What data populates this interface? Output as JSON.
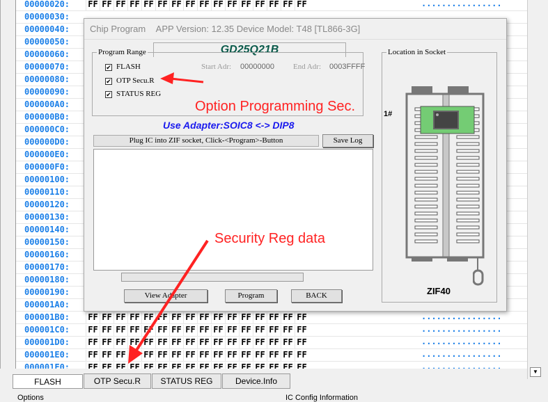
{
  "hex_view": {
    "addresses": [
      "00000020:",
      "00000030:",
      "00000040:",
      "00000050:",
      "00000060:",
      "00000070:",
      "00000080:",
      "00000090:",
      "000000A0:",
      "000000B0:",
      "000000C0:",
      "000000D0:",
      "000000E0:",
      "000000F0:",
      "00000100:",
      "00000110:",
      "00000120:",
      "00000130:",
      "00000140:",
      "00000150:",
      "00000160:",
      "00000170:",
      "00000180:",
      "00000190:",
      "000001A0:",
      "000001B0:",
      "000001C0:",
      "000001D0:",
      "000001E0:",
      "000001F0:"
    ],
    "byte_value": "FF",
    "bytes_per_row": 16,
    "ascii": "................"
  },
  "tabs": [
    {
      "label": "FLASH",
      "selected": true
    },
    {
      "label": "OTP Secu.R"
    },
    {
      "label": "STATUS REG"
    },
    {
      "label": "Device.Info"
    }
  ],
  "bottom": {
    "options": "Options",
    "ic_config": "IC Config Information"
  },
  "dialog": {
    "title": "Chip Program",
    "app_info": "APP Version: 12.35 Device Model: T48 [TL866-3G]",
    "chip_name": "GD25Q21B",
    "program_range_label": "Program Range",
    "checks": [
      {
        "label": "FLASH",
        "checked": true
      },
      {
        "label": "OTP Secu.R",
        "checked": true
      },
      {
        "label": "STATUS REG",
        "checked": true
      }
    ],
    "start_adr_label": "Start Adr:",
    "start_adr": "00000000",
    "end_adr_label": "End Adr:",
    "end_adr": "0003FFFF",
    "adapter": "Use Adapter:SOIC8 <-> DIP8",
    "log_header": "Plug IC into ZIF socket, Click-<Program>-Button",
    "save_log": "Save Log",
    "progress": 0,
    "buttons": {
      "view_adapter": "View Adapter",
      "program": "Program",
      "back": "BACK"
    },
    "socket": {
      "label": "Location in Socket",
      "pin1": "1#",
      "name": "ZIF40"
    }
  },
  "annotations": {
    "option_sec": "Option Programming Sec.",
    "security_reg": "Security Reg data",
    "color": "#ff2222"
  }
}
